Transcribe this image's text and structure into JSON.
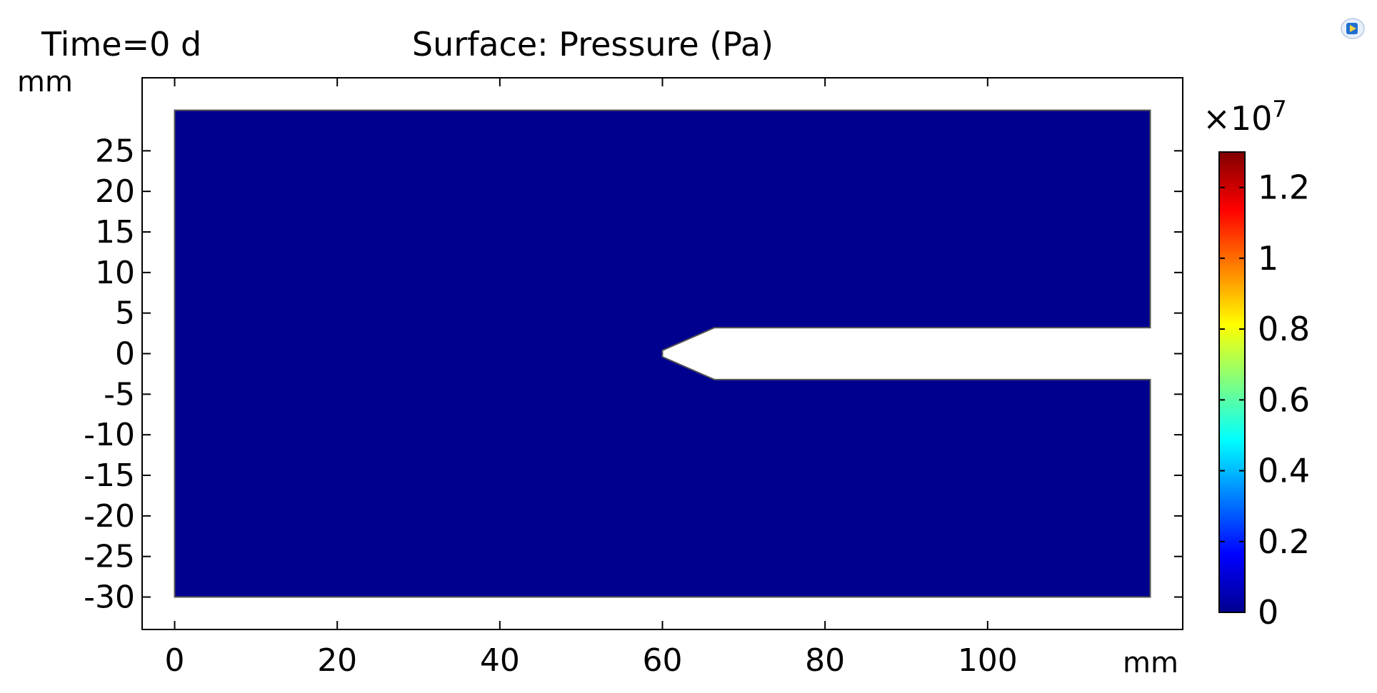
{
  "header": {
    "time_label": "Time=0 d",
    "title": "Surface: Pressure (Pa)"
  },
  "chart_data": {
    "type": "heatmap",
    "title": "Surface: Pressure (Pa)",
    "time": "Time=0 d",
    "xlabel": "mm",
    "ylabel": "mm",
    "xlim": [
      -4,
      124
    ],
    "ylim": [
      -34,
      34
    ],
    "x_ticks": [
      "0",
      "20",
      "40",
      "60",
      "80",
      "100"
    ],
    "x_tick_values": [
      0,
      20,
      40,
      60,
      80,
      100
    ],
    "y_ticks": [
      "25",
      "20",
      "15",
      "10",
      "5",
      "0",
      "-5",
      "-10",
      "-15",
      "-20",
      "-25",
      "-30"
    ],
    "y_tick_values": [
      25,
      20,
      15,
      10,
      5,
      0,
      -5,
      -10,
      -15,
      -20,
      -25,
      -30
    ],
    "domain": {
      "x_range": [
        0,
        120
      ],
      "y_range": [
        -30,
        30
      ],
      "notch_outline": [
        [
          120,
          3.2
        ],
        [
          66.4,
          3.2
        ],
        [
          60,
          0.4
        ],
        [
          60,
          -0.4
        ],
        [
          66.4,
          -3.2
        ],
        [
          120,
          -3.2
        ]
      ]
    },
    "field_value": 0,
    "fill_color": "#00008f",
    "colorbar": {
      "multiplier": "×10",
      "exponent": "7",
      "range": [
        0,
        1.3
      ],
      "ticks": [
        "1.2",
        "1",
        "0.8",
        "0.6",
        "0.4",
        "0.2",
        "0"
      ],
      "tick_values": [
        1.2,
        1.0,
        0.8,
        0.6,
        0.4,
        0.2,
        0.0
      ],
      "colormap": "rainbow",
      "colors": [
        "#00008f",
        "#0000ff",
        "#0080ff",
        "#00ffff",
        "#80ff80",
        "#ffff00",
        "#ff8000",
        "#ff0000",
        "#800000"
      ]
    },
    "grid": false
  },
  "icons": {
    "logo": "comsol-logo-icon"
  }
}
